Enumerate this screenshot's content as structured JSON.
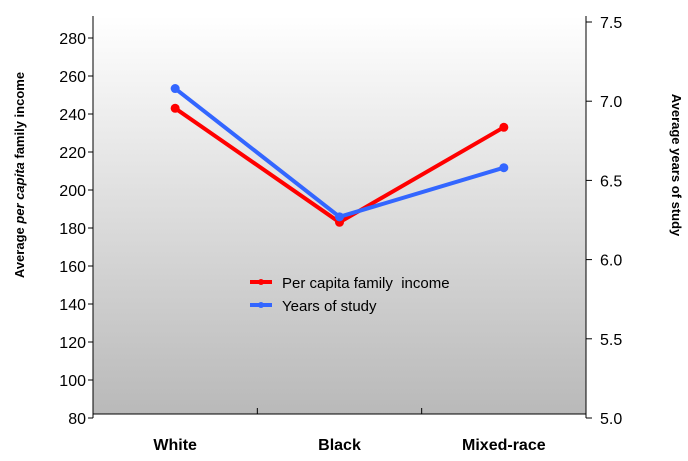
{
  "chart_data": {
    "type": "line",
    "categories": [
      "White",
      "Black",
      "Mixed-race"
    ],
    "series": [
      {
        "name": "Per capita family  income",
        "axis": "left",
        "color": "#ff0000",
        "values": [
          243,
          183,
          233
        ]
      },
      {
        "name": "Years of study",
        "axis": "right",
        "color": "#3366ff",
        "values": [
          7.08,
          6.27,
          6.58
        ]
      }
    ],
    "y_left": {
      "label_pre": "Average ",
      "label_italic": "per capita",
      "label_post": " family income",
      "range": [
        80,
        280
      ],
      "ticks": [
        "80",
        "100",
        "120",
        "140",
        "160",
        "180",
        "200",
        "220",
        "240",
        "260",
        "280"
      ]
    },
    "y_right": {
      "label": "Average years of study",
      "range": [
        5.0,
        7.5
      ],
      "ticks": [
        "5.0",
        "5.5",
        "6.0",
        "6.5",
        "7.0",
        "7.5"
      ]
    },
    "legend_position": "center",
    "grid": false
  }
}
